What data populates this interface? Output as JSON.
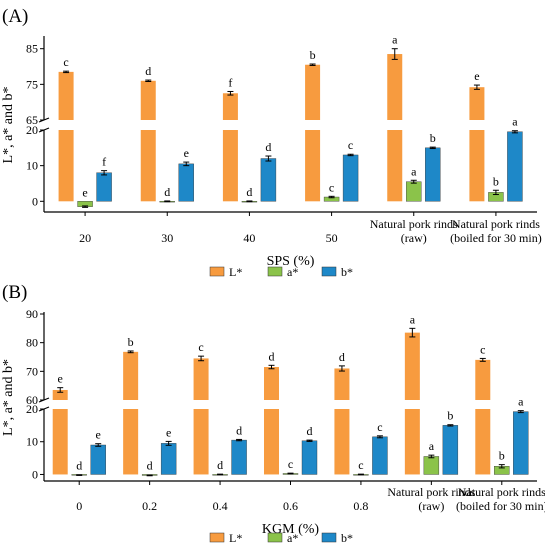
{
  "colors": {
    "L": "#F79B3F",
    "a": "#8BC34A",
    "b": "#1E88C8",
    "axis": "#000000"
  },
  "chart_data": [
    {
      "type": "bar",
      "panel_label": "(A)",
      "ylabel": "L*, a* and b*",
      "xlabel": "SPS (%)",
      "categories": [
        "20",
        "30",
        "40",
        "50",
        "Natural pork rinds\n(raw)",
        "Natural pork rinds\n(boiled for 30 min)"
      ],
      "upper_ylim": [
        65,
        88
      ],
      "upper_ticks": [
        "85",
        "75",
        "65"
      ],
      "lower_ylim": [
        -3,
        20
      ],
      "lower_ticks": [
        "20",
        "10",
        "0"
      ],
      "legend": [
        "L*",
        "a*",
        "b*"
      ],
      "legend_position": "bottom-center",
      "series": [
        {
          "name": "L*",
          "values": [
            78.5,
            76.0,
            72.5,
            80.5,
            83.5,
            74.2
          ],
          "errors": [
            0.2,
            0.2,
            0.5,
            0.2,
            1.5,
            0.6
          ],
          "letters": [
            "c",
            "d",
            "f",
            "b",
            "a",
            "e"
          ]
        },
        {
          "name": "a*",
          "values": [
            -1.5,
            0,
            0,
            1.2,
            5.5,
            2.5
          ],
          "errors": [
            0.2,
            0.1,
            0.1,
            0.2,
            0.4,
            0.6
          ],
          "letters": [
            "e",
            "d",
            "d",
            "c",
            "a",
            "b"
          ]
        },
        {
          "name": "b*",
          "values": [
            8.0,
            10.5,
            12.0,
            13.0,
            15.0,
            19.5
          ],
          "errors": [
            0.6,
            0.5,
            0.7,
            0.2,
            0.2,
            0.3
          ],
          "letters": [
            "f",
            "e",
            "d",
            "c",
            "b",
            "a"
          ]
        }
      ]
    },
    {
      "type": "bar",
      "panel_label": "(B)",
      "ylabel": "L*, a* and b*",
      "xlabel": "KGM (%)",
      "categories": [
        "0",
        "0.2",
        "0.4",
        "0.6",
        "0.8",
        "Natural pork rinds\n(raw)",
        "Natural pork rinds\n(boiled for 30 min)"
      ],
      "upper_ylim": [
        60,
        90
      ],
      "upper_ticks": [
        "90",
        "80",
        "70",
        "60"
      ],
      "lower_ylim": [
        -2,
        20
      ],
      "lower_ticks": [
        "20",
        "10",
        "0"
      ],
      "legend": [
        "L*",
        "a*",
        "b*"
      ],
      "legend_position": "bottom-center",
      "series": [
        {
          "name": "L*",
          "values": [
            63.5,
            76.8,
            74.5,
            71.5,
            71.0,
            83.5,
            74.0
          ],
          "errors": [
            0.8,
            0.3,
            0.8,
            0.6,
            0.9,
            1.5,
            0.5
          ],
          "letters": [
            "e",
            "b",
            "c",
            "d",
            "d",
            "a",
            "c"
          ]
        },
        {
          "name": "a*",
          "values": [
            -0.2,
            -0.3,
            0,
            0.3,
            0,
            5.5,
            2.5
          ],
          "errors": [
            0.1,
            0.1,
            0.1,
            0.1,
            0.1,
            0.4,
            0.5
          ],
          "letters": [
            "d",
            "d",
            "d",
            "c",
            "c",
            "a",
            "b"
          ]
        },
        {
          "name": "b*",
          "values": [
            9.0,
            9.5,
            10.5,
            10.3,
            11.5,
            15.0,
            19.2
          ],
          "errors": [
            0.4,
            0.6,
            0.2,
            0.2,
            0.3,
            0.2,
            0.3
          ],
          "letters": [
            "e",
            "e",
            "d",
            "d",
            "c",
            "b",
            "a"
          ]
        }
      ]
    }
  ]
}
